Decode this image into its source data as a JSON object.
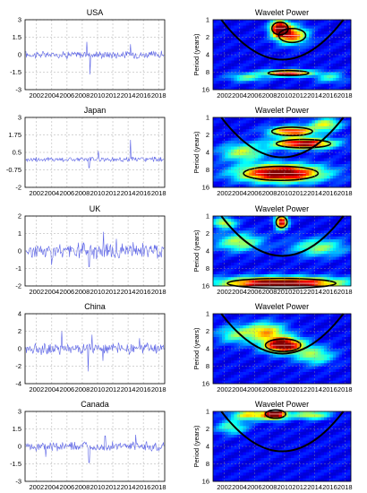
{
  "chart_data": [
    {
      "type": "line",
      "title": "USA",
      "x_ticks": [
        "2002",
        "2004",
        "2006",
        "2008",
        "2010",
        "2012",
        "2014",
        "2016",
        "2018"
      ],
      "y_ticks": [
        "3",
        "1.5",
        "0",
        "-1.5",
        "-3"
      ],
      "ylim": [
        -3,
        3
      ],
      "xlim": [
        2000.5,
        2018.8
      ],
      "series_color": "#5b63e6",
      "spikes": [
        [
          2009.0,
          -1.7
        ],
        [
          2008.6,
          1.1
        ],
        [
          2014.3,
          0.9
        ]
      ],
      "noise": 0.25
    },
    {
      "type": "line",
      "title": "Japan",
      "x_ticks": [
        "2002",
        "2004",
        "2006",
        "2008",
        "2010",
        "2012",
        "2014",
        "2016",
        "2018"
      ],
      "y_ticks": [
        "3",
        "1.75",
        "0.5",
        "-0.75",
        "-2"
      ],
      "ylim": [
        -2,
        3
      ],
      "xlim": [
        2000.5,
        2018.8
      ],
      "series_color": "#5b63e6",
      "spikes": [
        [
          2014.3,
          1.4
        ],
        [
          2008.9,
          -0.6
        ],
        [
          2010.1,
          0.6
        ]
      ],
      "noise": 0.15
    },
    {
      "type": "line",
      "title": "UK",
      "x_ticks": [
        "2002",
        "2004",
        "2006",
        "2008",
        "2010",
        "2012",
        "2014",
        "2016",
        "2018"
      ],
      "y_ticks": [
        "2",
        "1",
        "0",
        "-1",
        "-2"
      ],
      "ylim": [
        -2,
        2
      ],
      "xlim": [
        2000.5,
        2018.8
      ],
      "series_color": "#5b63e6",
      "spikes": [
        [
          2010.8,
          1.1
        ],
        [
          2004.0,
          -0.8
        ],
        [
          2008.9,
          -0.9
        ],
        [
          2012.5,
          0.7
        ]
      ],
      "noise": 0.35
    },
    {
      "type": "line",
      "title": "China",
      "x_ticks": [
        "2002",
        "2004",
        "2006",
        "2008",
        "2010",
        "2012",
        "2014",
        "2016",
        "2018"
      ],
      "y_ticks": [
        "4",
        "2",
        "0",
        "-2",
        "-4"
      ],
      "ylim": [
        -4,
        4
      ],
      "xlim": [
        2000.5,
        2018.8
      ],
      "series_color": "#5b63e6",
      "spikes": [
        [
          2005.3,
          2.0
        ],
        [
          2008.8,
          -2.6
        ],
        [
          2009.3,
          1.6
        ],
        [
          2010.7,
          -1.4
        ],
        [
          2015.5,
          1.2
        ]
      ],
      "noise": 0.5
    },
    {
      "type": "line",
      "title": "Canada",
      "x_ticks": [
        "2002",
        "2004",
        "2006",
        "2008",
        "2010",
        "2012",
        "2014",
        "2016",
        "2018"
      ],
      "y_ticks": [
        "3",
        "1.5",
        "0",
        "-1.5",
        "-3"
      ],
      "ylim": [
        -3,
        3
      ],
      "xlim": [
        2000.5,
        2018.8
      ],
      "series_color": "#5b63e6",
      "spikes": [
        [
          2008.9,
          -1.4
        ],
        [
          2011.0,
          0.9
        ],
        [
          2015.0,
          1.0
        ],
        [
          2003.2,
          -0.9
        ]
      ],
      "noise": 0.3
    },
    {
      "type": "heatmap",
      "title": "Wavelet Power",
      "ylabel": "Period (years)",
      "x_ticks": [
        "2002",
        "2004",
        "2006",
        "2008",
        "2010",
        "2012",
        "2014",
        "2016",
        "2018"
      ],
      "y_ticks": [
        "1",
        "2",
        "4",
        "8",
        "16"
      ],
      "xlim": [
        2000.5,
        2018.8
      ],
      "ylim_log2": [
        0,
        4
      ],
      "cone_bottom": 3.85,
      "cone_top_left": 2001.6,
      "cone_top_right": 2017.8,
      "blobs": [
        [
          2009.4,
          0.5,
          1.2,
          0.45,
          1.0
        ],
        [
          2011.0,
          0.9,
          2.0,
          0.5,
          0.7
        ],
        [
          2010.5,
          3.05,
          3.0,
          0.18,
          0.85
        ],
        [
          2005.0,
          3.3,
          2.5,
          0.25,
          0.35
        ],
        [
          2016.0,
          3.3,
          2.0,
          0.3,
          0.3
        ]
      ]
    },
    {
      "type": "heatmap",
      "title": "Wavelet Power",
      "ylabel": "Period (years)",
      "x_ticks": [
        "2002",
        "2004",
        "2006",
        "2008",
        "2010",
        "2012",
        "2014",
        "2016",
        "2018"
      ],
      "y_ticks": [
        "1",
        "2",
        "4",
        "8",
        "16"
      ],
      "xlim": [
        2000.5,
        2018.8
      ],
      "ylim_log2": [
        0,
        4
      ],
      "cone_bottom": 3.85,
      "cone_top_left": 2001.6,
      "cone_top_right": 2017.8,
      "blobs": [
        [
          2009.5,
          3.2,
          5.5,
          0.5,
          1.0
        ],
        [
          2012.5,
          1.5,
          4.0,
          0.3,
          0.9
        ],
        [
          2011.0,
          0.8,
          3.0,
          0.3,
          0.75
        ],
        [
          2004.5,
          2.0,
          3.0,
          0.5,
          0.45
        ],
        [
          2015.5,
          0.4,
          2.0,
          0.35,
          0.5
        ]
      ]
    },
    {
      "type": "heatmap",
      "title": "Wavelet Power",
      "ylabel": "Period (years)",
      "x_ticks": [
        "2002",
        "2004",
        "2006",
        "2008",
        "2010",
        "2012",
        "2014",
        "2016",
        "2018"
      ],
      "y_ticks": [
        "1",
        "2",
        "4",
        "8",
        "16"
      ],
      "xlim": [
        2000.5,
        2018.8
      ],
      "ylim_log2": [
        0,
        4
      ],
      "cone_bottom": 3.85,
      "cone_top_left": 2001.6,
      "cone_top_right": 2017.8,
      "blobs": [
        [
          2009.6,
          3.85,
          8.0,
          0.35,
          1.0
        ],
        [
          2009.6,
          0.35,
          0.8,
          0.4,
          0.9
        ],
        [
          2004.0,
          1.5,
          3.0,
          0.5,
          0.45
        ],
        [
          2014.5,
          1.8,
          3.5,
          0.5,
          0.4
        ],
        [
          2002.0,
          0.4,
          1.5,
          0.3,
          0.5
        ]
      ]
    },
    {
      "type": "heatmap",
      "title": "Wavelet Power",
      "ylabel": "Period (years)",
      "x_ticks": [
        "2002",
        "2004",
        "2006",
        "2008",
        "2010",
        "2012",
        "2014",
        "2016",
        "2018"
      ],
      "y_ticks": [
        "1",
        "2",
        "4",
        "8",
        "16"
      ],
      "xlim": [
        2000.5,
        2018.8
      ],
      "ylim_log2": [
        0,
        4
      ],
      "cone_bottom": 3.85,
      "cone_top_left": 2001.6,
      "cone_top_right": 2017.8,
      "blobs": [
        [
          2009.8,
          1.8,
          2.6,
          0.45,
          1.0
        ],
        [
          2007.5,
          1.0,
          2.5,
          0.5,
          0.55
        ],
        [
          2014.0,
          2.4,
          2.5,
          0.5,
          0.4
        ],
        [
          2003.5,
          1.2,
          2.5,
          0.5,
          0.35
        ]
      ]
    },
    {
      "type": "heatmap",
      "title": "Wavelet Power",
      "ylabel": "Period (years)",
      "x_ticks": [
        "2002",
        "2004",
        "2006",
        "2008",
        "2010",
        "2012",
        "2014",
        "2016",
        "2018"
      ],
      "y_ticks": [
        "1",
        "2",
        "4",
        "8",
        "16"
      ],
      "xlim": [
        2000.5,
        2018.8
      ],
      "ylim_log2": [
        0,
        4
      ],
      "cone_bottom": 3.85,
      "cone_top_left": 2001.6,
      "cone_top_right": 2017.8,
      "blobs": [
        [
          2008.8,
          0.15,
          1.5,
          0.3,
          0.95
        ],
        [
          2005.5,
          0.2,
          2.5,
          0.3,
          0.55
        ],
        [
          2013.5,
          0.2,
          2.5,
          0.25,
          0.5
        ],
        [
          2003.0,
          0.9,
          2.0,
          0.4,
          0.35
        ]
      ]
    }
  ]
}
